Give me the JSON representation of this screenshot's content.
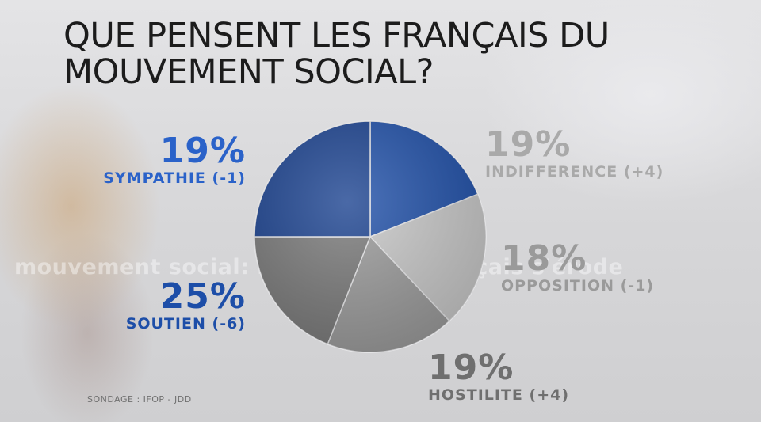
{
  "title_lines": [
    "QUE PENSENT LES FRANÇAIS DU",
    "MOUVEMENT SOCIAL?"
  ],
  "background_text": "mouvement social: l'opinion des français s'érode",
  "source": "SONDAGE : IFOP - JDD",
  "chart_data": {
    "type": "pie",
    "unit": "%",
    "slices": [
      {
        "label": "SYMPATHIE",
        "value": 19,
        "value_label": "19%",
        "change_label": "(-1)",
        "color": "#1d4ea8"
      },
      {
        "label": "INDIFFERENCE",
        "value": 19,
        "value_label": "19%",
        "change_label": "(+4)",
        "color": "#c8c8c8"
      },
      {
        "label": "OPPOSITION",
        "value": 18,
        "value_label": "18%",
        "change_label": "(-1)",
        "color": "#9a9a9a"
      },
      {
        "label": "HOSTILITE",
        "value": 19,
        "value_label": "19%",
        "change_label": "(+4)",
        "color": "#787878"
      },
      {
        "label": "SOUTIEN",
        "value": 25,
        "value_label": "25%",
        "change_label": "(-6)",
        "color": "#173f8e"
      }
    ]
  },
  "label_colors": {
    "SYMPATHIE": "#2a62c9",
    "INDIFFERENCE": "#a9a9a9",
    "OPPOSITION": "#9a9a9a",
    "HOSTILITE": "#6f6f6f",
    "SOUTIEN": "#1d4ea8"
  }
}
